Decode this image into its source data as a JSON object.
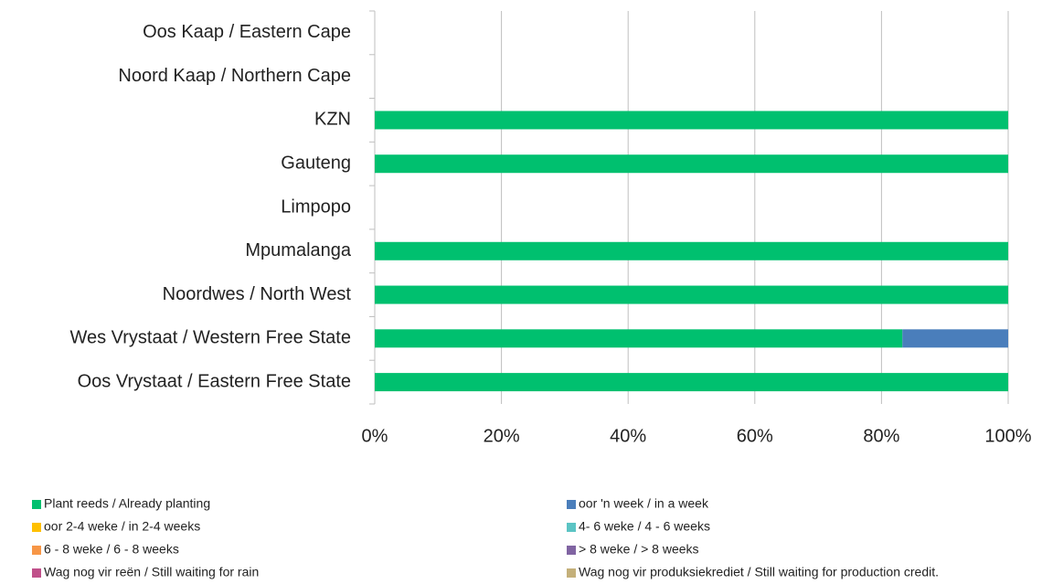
{
  "chart_data": {
    "type": "bar",
    "orientation": "horizontal",
    "stacked": true,
    "categories": [
      "Oos Kaap / Eastern Cape",
      "Noord Kaap / Northern Cape",
      "KZN",
      "Gauteng",
      "Limpopo",
      "Mpumalanga",
      "Noordwes / North West",
      "Wes Vrystaat / Western Free State",
      "Oos Vrystaat / Eastern Free State"
    ],
    "series": [
      {
        "name": "Plant reeds / Already planting",
        "color": "#00c06f",
        "values": [
          0,
          0,
          100,
          100,
          0,
          100,
          100,
          83.3,
          100
        ]
      },
      {
        "name": "oor 'n week / in a week",
        "color": "#4a7ebb",
        "values": [
          0,
          0,
          0,
          0,
          0,
          0,
          0,
          16.7,
          0
        ]
      },
      {
        "name": "oor 2-4 weke / in 2-4 weeks",
        "color": "#ffc000",
        "values": [
          0,
          0,
          0,
          0,
          0,
          0,
          0,
          0,
          0
        ]
      },
      {
        "name": "4- 6 weke / 4 - 6 weeks",
        "color": "#5bc4c4",
        "values": [
          0,
          0,
          0,
          0,
          0,
          0,
          0,
          0,
          0
        ]
      },
      {
        "name": "6 - 8 weke / 6 - 8 weeks",
        "color": "#f79646",
        "values": [
          0,
          0,
          0,
          0,
          0,
          0,
          0,
          0,
          0
        ]
      },
      {
        "name": "> 8 weke / > 8 weeks",
        "color": "#8064a2",
        "values": [
          0,
          0,
          0,
          0,
          0,
          0,
          0,
          0,
          0
        ]
      },
      {
        "name": "Wag nog vir reën / Still waiting for rain",
        "color": "#c0508a",
        "values": [
          0,
          0,
          0,
          0,
          0,
          0,
          0,
          0,
          0
        ]
      },
      {
        "name": "Wag nog vir produksiekrediet / Still waiting for production credit.",
        "color": "#c4b07a",
        "values": [
          0,
          0,
          0,
          0,
          0,
          0,
          0,
          0,
          0
        ]
      }
    ],
    "xlim": [
      0,
      100
    ],
    "xticks": [
      {
        "value": 0,
        "label": "0%"
      },
      {
        "value": 20,
        "label": "20%"
      },
      {
        "value": 40,
        "label": "40%"
      },
      {
        "value": 60,
        "label": "60%"
      },
      {
        "value": 80,
        "label": "80%"
      },
      {
        "value": 100,
        "label": "100%"
      }
    ],
    "grid": true,
    "legend": "bottom"
  }
}
